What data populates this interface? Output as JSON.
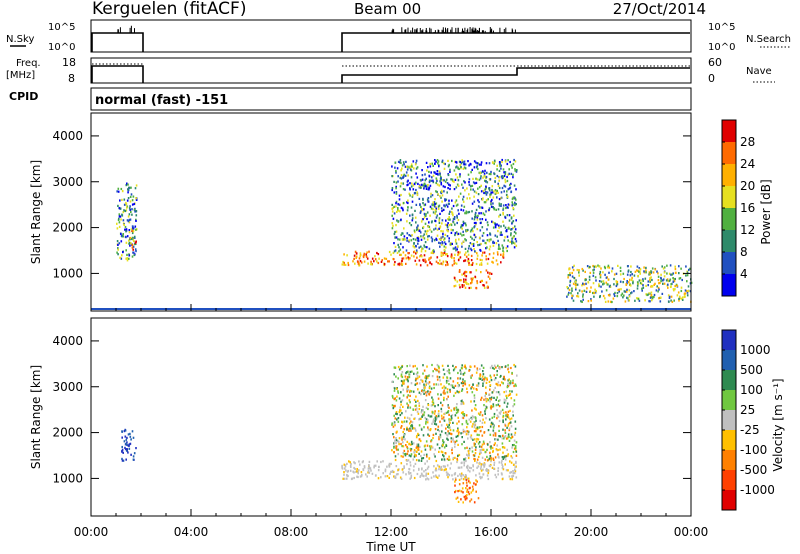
{
  "header": {
    "station": "Kerguelen (fitACF)",
    "beam": "Beam 00",
    "date": "27/Oct/2014"
  },
  "noise_panel": {
    "left_label": "N.Sky",
    "right_label": "N.Search",
    "y_ticks_left": [
      "10^5",
      "10^0"
    ],
    "y_ticks_right": [
      "10^5",
      "10^0"
    ]
  },
  "freq_panel": {
    "left_label_1": "Freq.",
    "left_label_2": "[MHz]",
    "right_label": "Nave",
    "y_ticks_left": [
      "18",
      "8"
    ],
    "y_ticks_right": [
      "60",
      "0"
    ]
  },
  "cpid": {
    "label": "CPID",
    "value": "normal (fast) -151"
  },
  "x_axis": {
    "ticks": [
      "00:00",
      "04:00",
      "08:00",
      "12:00",
      "16:00",
      "20:00",
      "00:00"
    ],
    "label": "Time UT"
  },
  "chart_data": [
    {
      "type": "heatmap",
      "name": "power",
      "ylabel": "Slant Range [km]",
      "ylim": [
        180,
        4500
      ],
      "y_ticks": [
        1000,
        2000,
        3000,
        4000
      ],
      "xlim_hours": [
        0,
        24
      ],
      "colorbar": {
        "label": "Power [dB]",
        "ticks": [
          "28",
          "24",
          "20",
          "16",
          "12",
          "8",
          "4"
        ],
        "colors": [
          "#e00000",
          "#ff6a00",
          "#ffb000",
          "#e6e020",
          "#50b040",
          "#2e8a6a",
          "#2050c0",
          "#0000ee"
        ]
      },
      "regions": [
        {
          "t": [
            1.0,
            1.8
          ],
          "r": [
            1300,
            3000
          ],
          "level": "mixed"
        },
        {
          "t": [
            1.5,
            1.8
          ],
          "r": [
            1500,
            2000
          ],
          "level": "high"
        },
        {
          "t": [
            10.0,
            16.5
          ],
          "r": [
            1200,
            1500
          ],
          "level": "high"
        },
        {
          "t": [
            12.0,
            17.0
          ],
          "r": [
            1500,
            3500
          ],
          "level": "mixed"
        },
        {
          "t": [
            14.5,
            16.0
          ],
          "r": [
            700,
            1100
          ],
          "level": "high"
        },
        {
          "t": [
            19.0,
            24.0
          ],
          "r": [
            400,
            1200
          ],
          "level": "low"
        }
      ]
    },
    {
      "type": "heatmap",
      "name": "velocity",
      "ylabel": "Slant Range [km]",
      "ylim": [
        180,
        4500
      ],
      "y_ticks": [
        1000,
        2000,
        3000,
        4000
      ],
      "xlim_hours": [
        0,
        24
      ],
      "colorbar": {
        "label": "Velocity [m s⁻¹]",
        "ticks": [
          "1000",
          "500",
          "100",
          "25",
          "-25",
          "-100",
          "-500",
          "-1000"
        ],
        "colors": [
          "#2030c0",
          "#2060b0",
          "#2e8a50",
          "#70c840",
          "#c0c0c0",
          "#ffc000",
          "#ff8000",
          "#ff4000",
          "#e00000"
        ]
      },
      "regions": [
        {
          "t": [
            1.2,
            1.8
          ],
          "r": [
            1400,
            2100
          ],
          "level": "positive"
        },
        {
          "t": [
            10.0,
            17.0
          ],
          "r": [
            1000,
            1400
          ],
          "level": "ground"
        },
        {
          "t": [
            12.0,
            17.0
          ],
          "r": [
            1400,
            3500
          ],
          "level": "mixed"
        },
        {
          "t": [
            14.5,
            15.5
          ],
          "r": [
            500,
            1000
          ],
          "level": "negative"
        }
      ]
    }
  ]
}
